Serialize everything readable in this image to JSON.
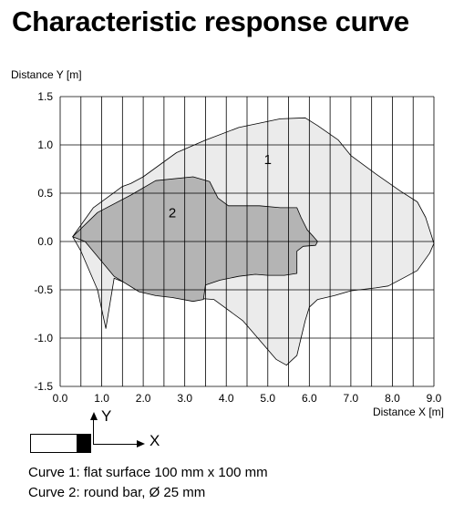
{
  "title": "Characteristic response curve",
  "chart_data": {
    "type": "area",
    "ylabel": "Distance Y [m]",
    "xlabel": "Distance X [m]",
    "xlim": [
      0,
      9
    ],
    "ylim": [
      -1.5,
      1.5
    ],
    "x_ticks": [
      "0.0",
      "1.0",
      "2.0",
      "3.0",
      "4.0",
      "5.0",
      "6.0",
      "7.0",
      "8.0",
      "9.0"
    ],
    "y_ticks": [
      "1.5",
      "1.0",
      "0.5",
      "0.0",
      "-0.5",
      "-1.0",
      "-1.5"
    ],
    "grid": true,
    "series": [
      {
        "name": "1",
        "color": "#ebebeb",
        "points": [
          [
            0.3,
            0.05
          ],
          [
            0.8,
            0.35
          ],
          [
            1.5,
            0.57
          ],
          [
            1.7,
            0.6
          ],
          [
            2.0,
            0.67
          ],
          [
            2.8,
            0.92
          ],
          [
            3.5,
            1.05
          ],
          [
            4.3,
            1.18
          ],
          [
            5.3,
            1.27
          ],
          [
            5.9,
            1.28
          ],
          [
            6.2,
            1.2
          ],
          [
            6.7,
            1.05
          ],
          [
            7.0,
            0.89
          ],
          [
            7.6,
            0.7
          ],
          [
            8.2,
            0.52
          ],
          [
            8.6,
            0.41
          ],
          [
            8.8,
            0.25
          ],
          [
            8.95,
            0.05
          ],
          [
            9.0,
            -0.02
          ],
          [
            8.9,
            -0.12
          ],
          [
            8.6,
            -0.3
          ],
          [
            8.3,
            -0.37
          ],
          [
            7.9,
            -0.46
          ],
          [
            7.6,
            -0.48
          ],
          [
            7.2,
            -0.5
          ],
          [
            7.0,
            -0.51
          ],
          [
            6.6,
            -0.56
          ],
          [
            6.2,
            -0.6
          ],
          [
            6.0,
            -0.68
          ],
          [
            5.9,
            -0.82
          ],
          [
            5.8,
            -1.0
          ],
          [
            5.7,
            -1.18
          ],
          [
            5.6,
            -1.22
          ],
          [
            5.45,
            -1.28
          ],
          [
            5.2,
            -1.22
          ],
          [
            4.8,
            -1.02
          ],
          [
            4.4,
            -0.82
          ],
          [
            3.7,
            -0.6
          ],
          [
            2.5,
            -0.56
          ],
          [
            2.0,
            -0.5
          ],
          [
            1.3,
            -0.38
          ],
          [
            1.1,
            -0.9
          ],
          [
            0.9,
            -0.5
          ],
          [
            0.5,
            -0.1
          ],
          [
            0.3,
            0.05
          ]
        ]
      },
      {
        "name": "2",
        "color": "#b4b4b4",
        "points": [
          [
            0.3,
            0.05
          ],
          [
            0.9,
            0.3
          ],
          [
            1.7,
            0.48
          ],
          [
            2.3,
            0.63
          ],
          [
            3.2,
            0.67
          ],
          [
            3.6,
            0.62
          ],
          [
            3.8,
            0.45
          ],
          [
            4.05,
            0.37
          ],
          [
            4.8,
            0.37
          ],
          [
            5.3,
            0.35
          ],
          [
            5.7,
            0.35
          ],
          [
            5.8,
            0.25
          ],
          [
            5.95,
            0.12
          ],
          [
            6.1,
            0.05
          ],
          [
            6.2,
            0.0
          ],
          [
            6.15,
            -0.04
          ],
          [
            5.85,
            -0.05
          ],
          [
            5.7,
            -0.1
          ],
          [
            5.7,
            -0.22
          ],
          [
            5.7,
            -0.33
          ],
          [
            5.4,
            -0.35
          ],
          [
            5.0,
            -0.35
          ],
          [
            4.7,
            -0.34
          ],
          [
            4.3,
            -0.36
          ],
          [
            3.85,
            -0.4
          ],
          [
            3.5,
            -0.45
          ],
          [
            3.45,
            -0.6
          ],
          [
            3.2,
            -0.62
          ],
          [
            2.7,
            -0.58
          ],
          [
            2.3,
            -0.56
          ],
          [
            1.9,
            -0.52
          ],
          [
            1.3,
            -0.36
          ],
          [
            0.6,
            0.0
          ],
          [
            0.3,
            0.05
          ]
        ]
      }
    ],
    "curve_labels": [
      {
        "text": "1",
        "x": 5.0,
        "y": 0.8
      },
      {
        "text": "2",
        "x": 2.7,
        "y": 0.25
      }
    ]
  },
  "legend_icon": {
    "y_axis": "Y",
    "x_axis": "X"
  },
  "captions": [
    "Curve 1: flat surface 100 mm x 100 mm",
    "Curve 2: round bar, Ø 25 mm"
  ]
}
